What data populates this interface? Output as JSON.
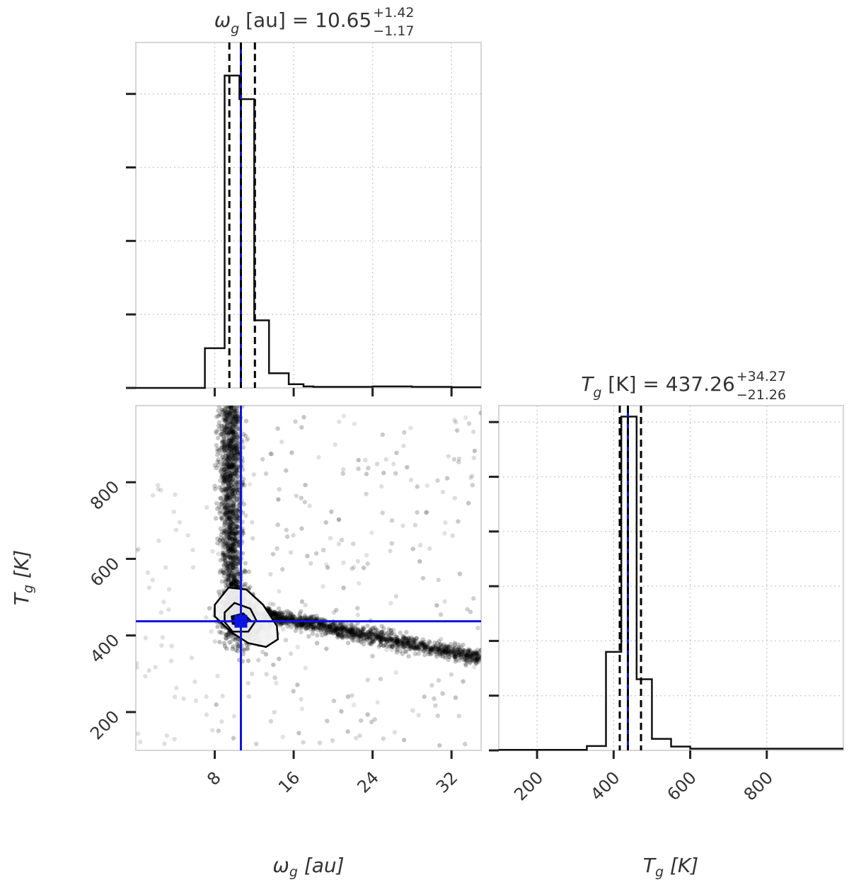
{
  "chart_data": [
    {
      "type": "histogram",
      "panel": "top-left",
      "title": {
        "prefix": "ω",
        "sub": "g",
        "unit": " [au] = ",
        "value": "10.65",
        "plus": "+1.42",
        "minus": "−1.17"
      },
      "xlim": [
        0,
        35
      ],
      "ylim": [
        0,
        0.47
      ],
      "x_ticks": [
        8,
        16,
        24,
        32
      ],
      "grid": true,
      "bin_edges": [
        7,
        9,
        10.5,
        12,
        13.5,
        15.5,
        17,
        18,
        20,
        24,
        28,
        32,
        35
      ],
      "values": [
        0.054,
        0.425,
        0.393,
        0.092,
        0.02,
        0.005,
        0.002,
        0.0015,
        0.0015,
        0.002,
        0.0015,
        0.001
      ],
      "median": 10.65,
      "lower": 9.48,
      "upper": 12.07,
      "truth": 10.65
    },
    {
      "type": "scatter",
      "panel": "bottom-left",
      "xlabel": {
        "main": "ω",
        "sub": "g",
        "unit": " [au]"
      },
      "ylabel": {
        "main": "T",
        "sub": "g",
        "unit": " [K]"
      },
      "xlim": [
        0,
        35
      ],
      "ylim": [
        100,
        1000
      ],
      "x_ticks": [
        8,
        16,
        24,
        32
      ],
      "y_ticks": [
        200,
        400,
        600,
        800
      ],
      "x_tick_labels": [
        "8",
        "16",
        "24",
        "32"
      ],
      "y_tick_labels": [
        "200",
        "400",
        "600",
        "800"
      ],
      "truth": {
        "x": 10.65,
        "y": 437
      }
    },
    {
      "type": "histogram",
      "panel": "bottom-right",
      "title": {
        "prefix": "T",
        "sub": "g",
        "unit": " [K] = ",
        "value": "437.26",
        "plus": "+34.27",
        "minus": "−21.26"
      },
      "xlabel": {
        "main": "T",
        "sub": "g",
        "unit": " [K]"
      },
      "xlim": [
        100,
        1000
      ],
      "ylim": [
        0,
        0.63
      ],
      "x_ticks": [
        200,
        400,
        600,
        800
      ],
      "x_tick_labels": [
        "200",
        "400",
        "600",
        "800"
      ],
      "grid": true,
      "bin_edges": [
        100,
        330,
        380,
        420,
        460,
        500,
        550,
        600,
        1000
      ],
      "values": [
        0.001,
        0.008,
        0.18,
        0.61,
        0.13,
        0.021,
        0.007,
        0.003
      ],
      "median": 437.26,
      "lower": 416,
      "upper": 471.5,
      "truth": 437.26
    }
  ]
}
